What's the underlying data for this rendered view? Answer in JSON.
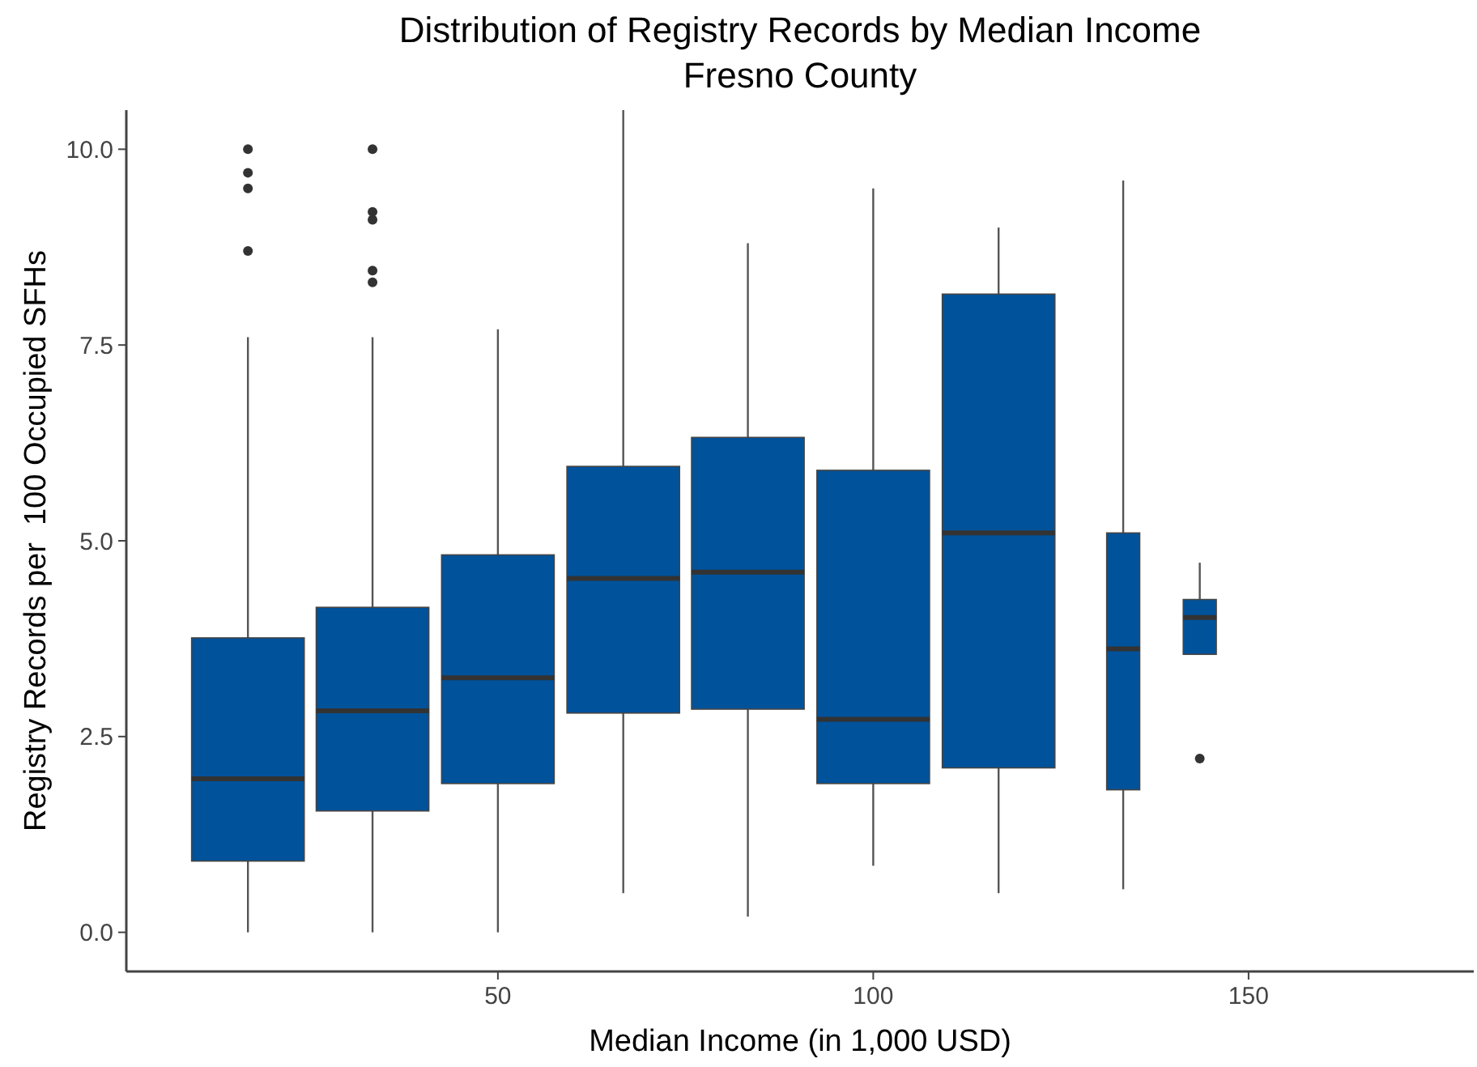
{
  "chart_data": {
    "type": "box",
    "title": "Distribution of Registry Records by Median Income",
    "subtitle": "Fresno County",
    "xlabel": "Median Income (in 1,000 USD)",
    "ylabel": "Registry Records per  100 Occupied SFHs",
    "x": [
      16.7,
      33.3,
      50,
      66.7,
      83.3,
      100,
      116.7,
      133.3,
      143.5
    ],
    "color": "#00529b",
    "boxes": [
      {
        "low": 0,
        "q1": 0.91,
        "median": 1.96,
        "q3": 3.76,
        "high": 7.6,
        "outliers": [
          8.7,
          9.5,
          9.7,
          10.0
        ]
      },
      {
        "low": 0,
        "q1": 1.55,
        "median": 2.83,
        "q3": 4.15,
        "high": 7.6,
        "outliers": [
          8.3,
          8.45,
          9.1,
          9.2,
          10.0
        ]
      },
      {
        "low": 0,
        "q1": 1.9,
        "median": 3.25,
        "q3": 4.82,
        "high": 7.7
      },
      {
        "low": 0.5,
        "q1": 2.8,
        "median": 4.52,
        "q3": 5.95,
        "high": 10.5
      },
      {
        "low": 0.2,
        "q1": 2.85,
        "median": 4.6,
        "q3": 6.32,
        "high": 8.8
      },
      {
        "low": 0.85,
        "q1": 1.9,
        "median": 2.72,
        "q3": 5.9,
        "high": 9.5
      },
      {
        "low": 0.5,
        "q1": 2.1,
        "median": 5.1,
        "q3": 8.15,
        "high": 9.0
      },
      {
        "low": 0.55,
        "q1": 1.82,
        "median": 3.62,
        "q3": 5.1,
        "high": 9.6
      },
      {
        "low": 3.55,
        "q1": 3.55,
        "median": 4.02,
        "q3": 4.25,
        "high": 4.72,
        "outliers": [
          2.22
        ]
      }
    ],
    "xlim": [
      0.5,
      180
    ],
    "xticks": [
      50,
      100,
      150
    ],
    "ylim": [
      -0.5,
      10.5
    ],
    "yticks": [
      {
        "value": 0,
        "label": "0.0"
      },
      {
        "value": 2.5,
        "label": "2.5"
      },
      {
        "value": 5,
        "label": "5.0"
      },
      {
        "value": 7.5,
        "label": "7.5"
      },
      {
        "value": 10,
        "label": "10.0"
      }
    ],
    "grid": false
  }
}
